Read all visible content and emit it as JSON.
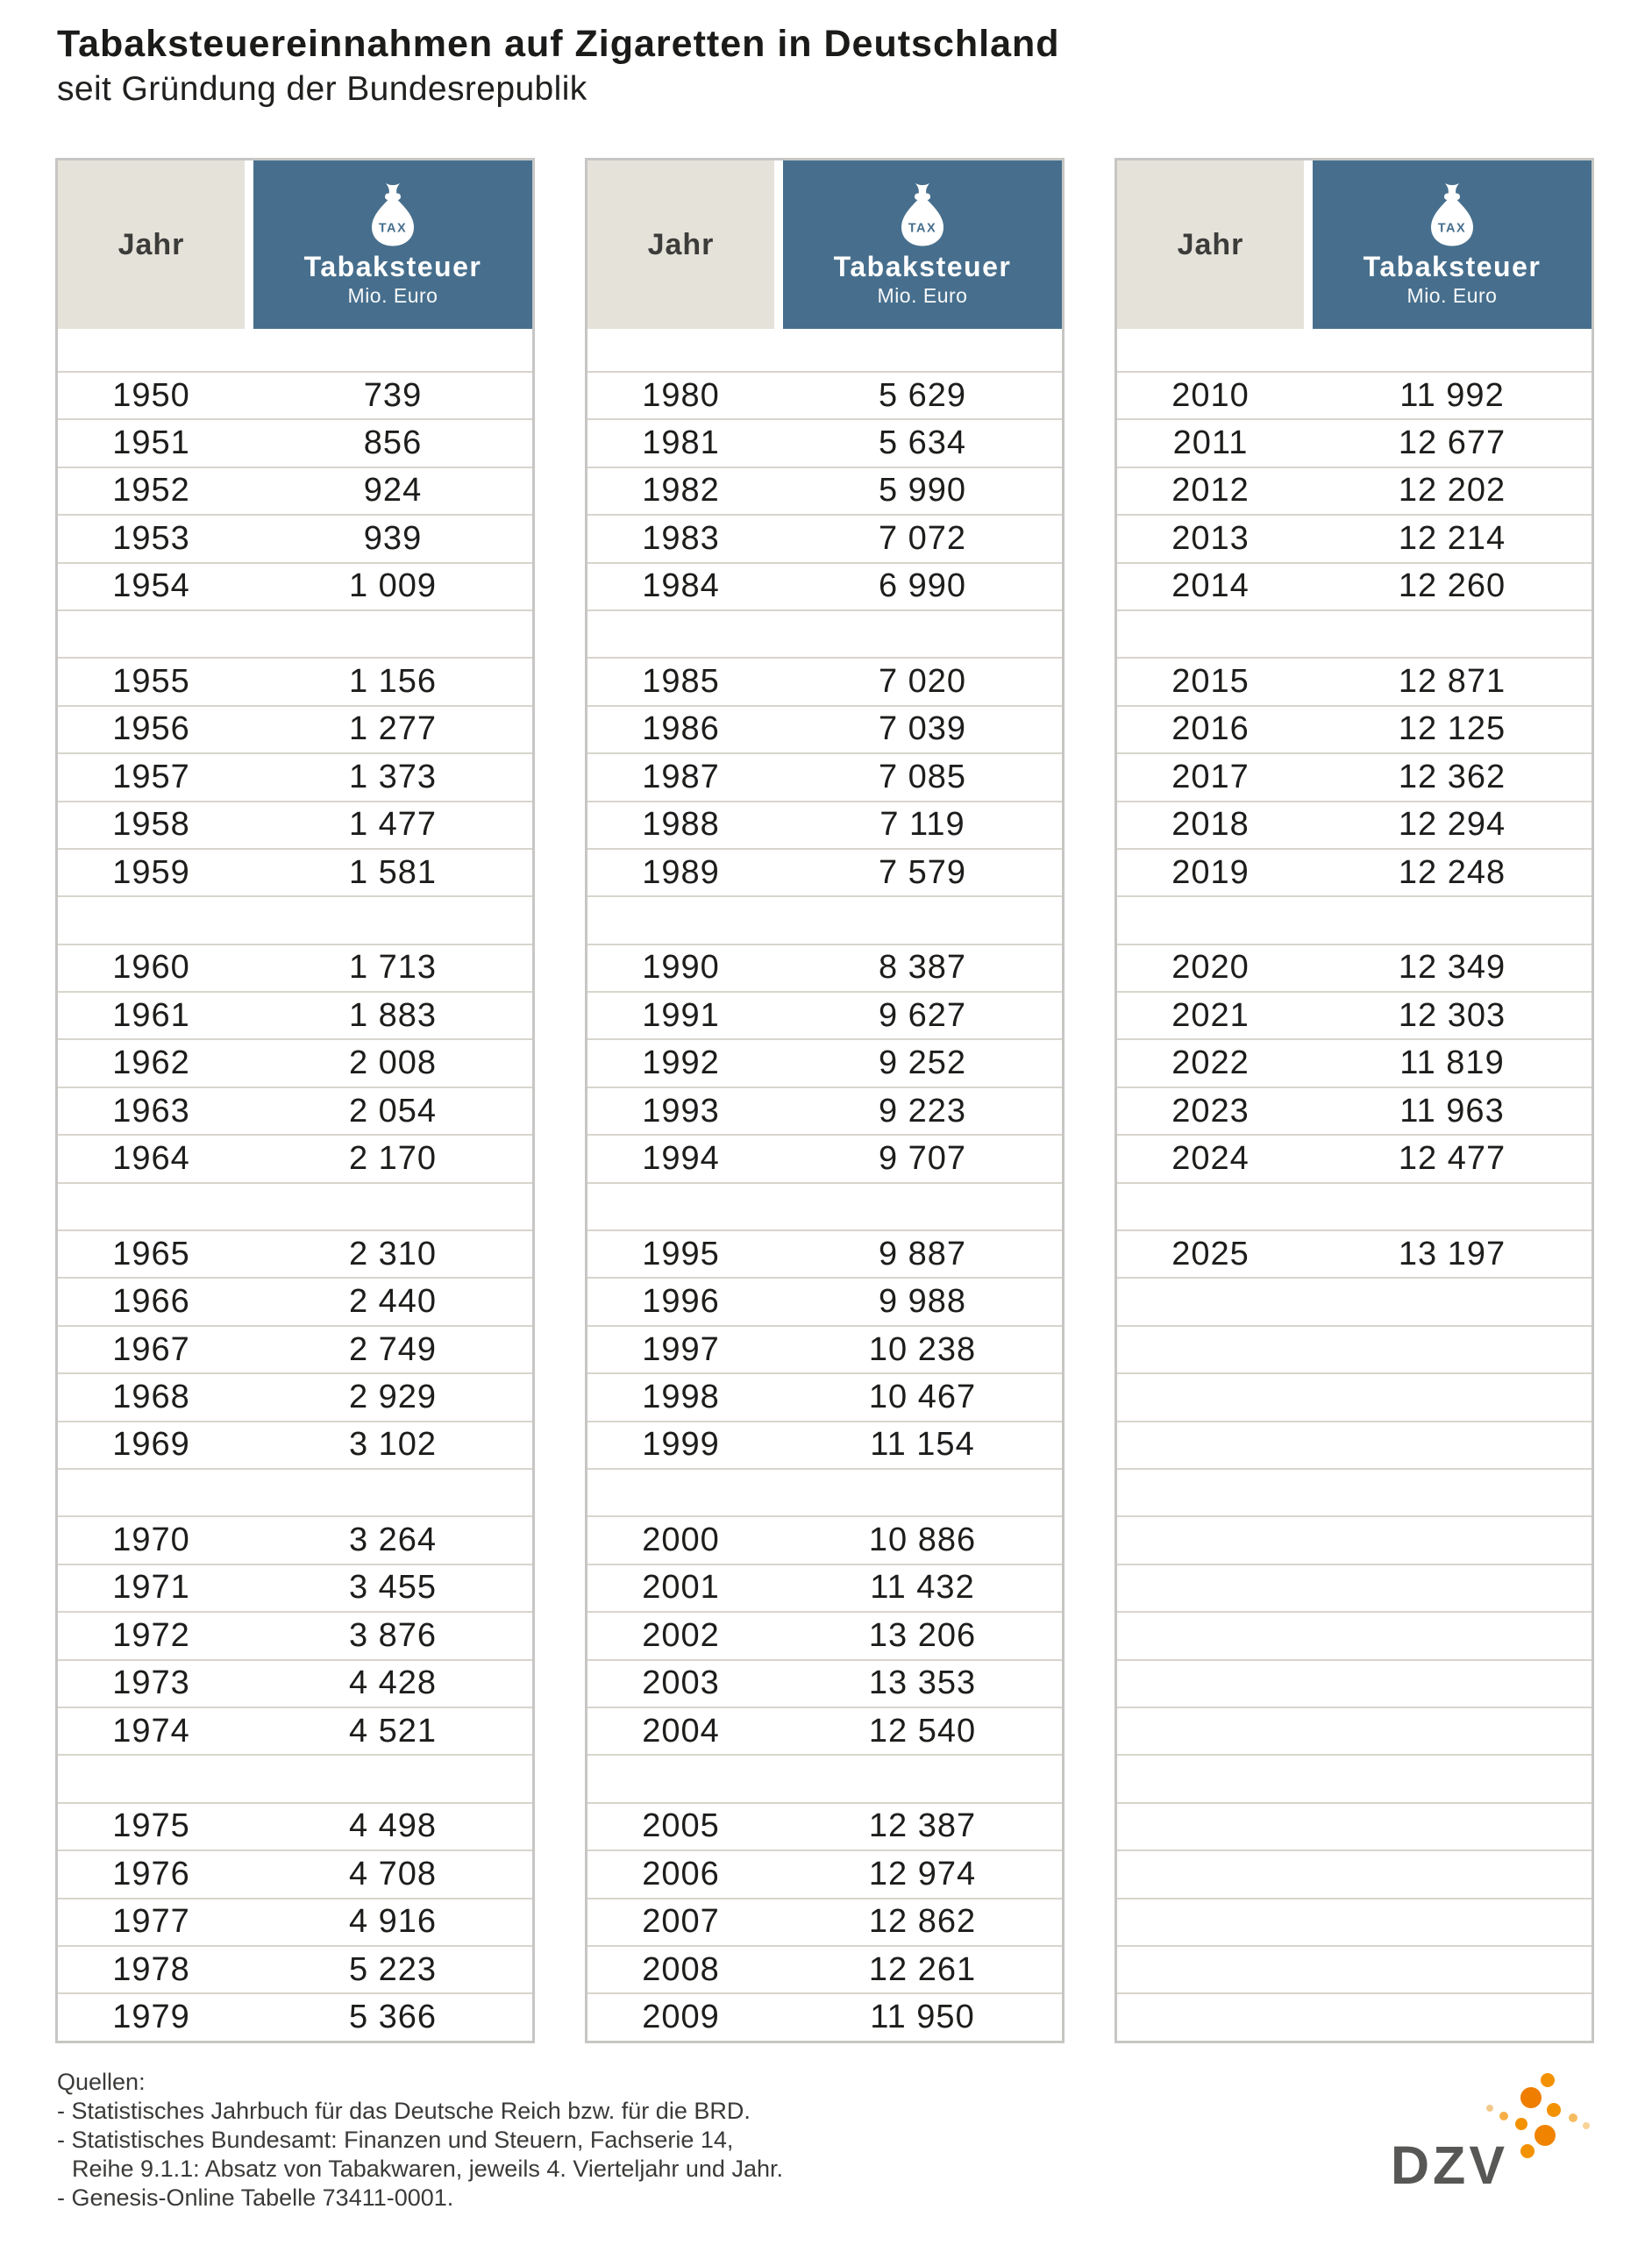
{
  "title": "Tabaksteuereinnahmen auf Zigaretten in Deutschland",
  "subtitle": "seit Gründung der Bundesrepublik",
  "table_header": {
    "year_label": "Jahr",
    "tax_label": "Tabaksteuer",
    "unit_label": "Mio. Euro",
    "bag_icon_label": "TAX"
  },
  "colors": {
    "header_blue": "#476f8d",
    "header_beige": "#e5e2da",
    "accent_orange": "#f39200",
    "logo_gray": "#575756"
  },
  "tables": [
    {
      "rows": [
        1950,
        1951,
        1952,
        1953,
        1954,
        null,
        1955,
        1956,
        1957,
        1958,
        1959,
        null,
        1960,
        1961,
        1962,
        1963,
        1964,
        null,
        1965,
        1966,
        1967,
        1968,
        1969,
        null,
        1970,
        1971,
        1972,
        1973,
        1974,
        null,
        1975,
        1976,
        1977,
        1978,
        1979
      ]
    },
    {
      "rows": [
        1980,
        1981,
        1982,
        1983,
        1984,
        null,
        1985,
        1986,
        1987,
        1988,
        1989,
        null,
        1990,
        1991,
        1992,
        1993,
        1994,
        null,
        1995,
        1996,
        1997,
        1998,
        1999,
        null,
        2000,
        2001,
        2002,
        2003,
        2004,
        null,
        2005,
        2006,
        2007,
        2008,
        2009
      ]
    },
    {
      "rows": [
        2010,
        2011,
        2012,
        2013,
        2014,
        null,
        2015,
        2016,
        2017,
        2018,
        2019,
        null,
        2020,
        2021,
        2022,
        2023,
        2024,
        null,
        2025,
        null,
        null,
        null,
        null,
        null,
        null,
        null,
        null,
        null,
        null,
        null,
        null,
        null,
        null,
        null,
        null
      ]
    }
  ],
  "sources": {
    "heading": "Quellen:",
    "items": [
      "- Statistisches Jahrbuch für das Deutsche Reich bzw. für die BRD.",
      "- Statistisches Bundesamt: Finanzen und Steuern, Fachserie 14,",
      "Reihe 9.1.1: Absatz von Tabakwaren, jeweils 4. Vierteljahr und Jahr.",
      "- Genesis-Online Tabelle 73411-0001."
    ]
  },
  "logo": {
    "text": "DZV"
  },
  "chart_data": {
    "type": "table",
    "title": "Tabaksteuereinnahmen auf Zigaretten in Deutschland seit Gründung der Bundesrepublik",
    "columns": [
      "Jahr",
      "Tabaksteuer (Mio. Euro)"
    ],
    "years": [
      1950,
      1951,
      1952,
      1953,
      1954,
      1955,
      1956,
      1957,
      1958,
      1959,
      1960,
      1961,
      1962,
      1963,
      1964,
      1965,
      1966,
      1967,
      1968,
      1969,
      1970,
      1971,
      1972,
      1973,
      1974,
      1975,
      1976,
      1977,
      1978,
      1979,
      1980,
      1981,
      1982,
      1983,
      1984,
      1985,
      1986,
      1987,
      1988,
      1989,
      1990,
      1991,
      1992,
      1993,
      1994,
      1995,
      1996,
      1997,
      1998,
      1999,
      2000,
      2001,
      2002,
      2003,
      2004,
      2005,
      2006,
      2007,
      2008,
      2009,
      2010,
      2011,
      2012,
      2013,
      2014,
      2015,
      2016,
      2017,
      2018,
      2019,
      2020,
      2021,
      2022,
      2023,
      2024,
      2025
    ],
    "values": [
      739,
      856,
      924,
      939,
      1009,
      1156,
      1277,
      1373,
      1477,
      1581,
      1713,
      1883,
      2008,
      2054,
      2170,
      2310,
      2440,
      2749,
      2929,
      3102,
      3264,
      3455,
      3876,
      4428,
      4521,
      4498,
      4708,
      4916,
      5223,
      5366,
      5629,
      5634,
      5990,
      7072,
      6990,
      7020,
      7039,
      7085,
      7119,
      7579,
      8387,
      9627,
      9252,
      9223,
      9707,
      9887,
      9988,
      10238,
      10467,
      11154,
      10886,
      11432,
      13206,
      13353,
      12540,
      12387,
      12974,
      12862,
      12261,
      11950,
      11992,
      12677,
      12202,
      12214,
      12260,
      12871,
      12125,
      12362,
      12294,
      12248,
      12349,
      12303,
      11819,
      11963,
      12477,
      13197
    ]
  }
}
